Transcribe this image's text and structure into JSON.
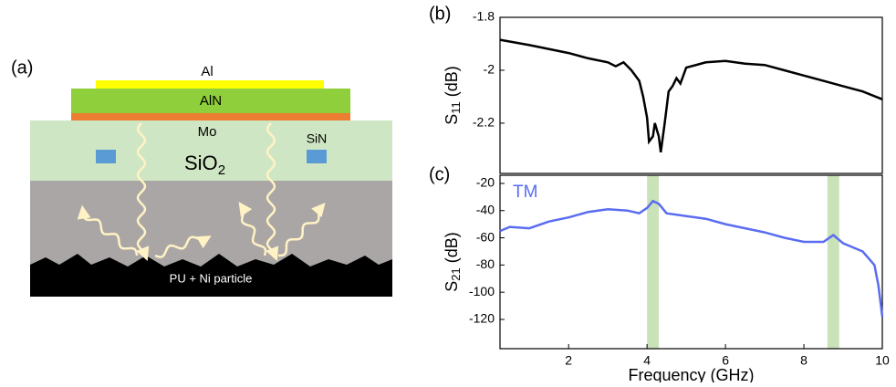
{
  "diagram": {
    "panel_label": "(a)",
    "layers": {
      "top_electrode": "Al",
      "piezo": "AlN",
      "bottom_electrode": "Mo",
      "inclusion": "SiN",
      "cladding_symbol": "SiO",
      "cladding_subscript": "2",
      "absorber": "PU + Ni particle"
    }
  },
  "chart_data": [
    {
      "type": "line",
      "panel_label": "(b)",
      "ylabel_symbol": "S",
      "ylabel_subscript": "11",
      "ylabel_unit": "(dB)",
      "xlim": [
        0.25,
        10
      ],
      "ylim": [
        -2.39,
        -1.8
      ],
      "yticks": [
        -1.8,
        -2.0,
        -2.2
      ],
      "series": [
        {
          "color": "#000000",
          "x": [
            0.25,
            1,
            2,
            2.5,
            3,
            3.2,
            3.4,
            3.6,
            3.7,
            3.8,
            3.9,
            4.0,
            4.05,
            4.15,
            4.2,
            4.3,
            4.35,
            4.45,
            4.55,
            4.65,
            4.75,
            4.85,
            5,
            5.5,
            6,
            6.5,
            7,
            7.5,
            8,
            8.5,
            9,
            9.5,
            10
          ],
          "values": [
            -1.885,
            -1.905,
            -1.935,
            -1.955,
            -1.97,
            -1.985,
            -1.97,
            -2.0,
            -2.02,
            -2.04,
            -2.1,
            -2.18,
            -2.27,
            -2.25,
            -2.2,
            -2.25,
            -2.31,
            -2.2,
            -2.08,
            -2.06,
            -2.03,
            -2.05,
            -1.99,
            -1.97,
            -1.965,
            -1.975,
            -1.98,
            -2.0,
            -2.02,
            -2.04,
            -2.06,
            -2.08,
            -2.11
          ]
        }
      ]
    },
    {
      "type": "line",
      "panel_label": "(c)",
      "ylabel_symbol": "S",
      "ylabel_subscript": "21",
      "ylabel_unit": "(dB)",
      "xlabel": "Frequency (GHz)",
      "annotation": "TM",
      "highlight_color": "#c9e2b8",
      "highlights": [
        [
          4.0,
          4.3
        ],
        [
          8.6,
          8.9
        ]
      ],
      "xlim": [
        0.25,
        10
      ],
      "ylim": [
        -141.5,
        -14
      ],
      "xticks": [
        2,
        4,
        6,
        8,
        10
      ],
      "yticks": [
        -20,
        -40,
        -60,
        -80,
        -100,
        -120
      ],
      "series": [
        {
          "color": "#5a6cf0",
          "x": [
            0.25,
            0.5,
            1,
            1.5,
            2,
            2.5,
            3,
            3.5,
            3.8,
            4.0,
            4.15,
            4.3,
            4.5,
            5,
            5.5,
            6,
            6.5,
            7,
            7.5,
            8,
            8.5,
            8.75,
            9,
            9.5,
            9.8,
            9.9,
            10
          ],
          "values": [
            -55,
            -52,
            -53,
            -48,
            -45,
            -41,
            -39,
            -40,
            -42,
            -38,
            -33,
            -35,
            -42,
            -44,
            -46,
            -50,
            -53,
            -56,
            -60,
            -63,
            -63,
            -58,
            -64,
            -70,
            -80,
            -95,
            -118
          ]
        }
      ]
    }
  ]
}
